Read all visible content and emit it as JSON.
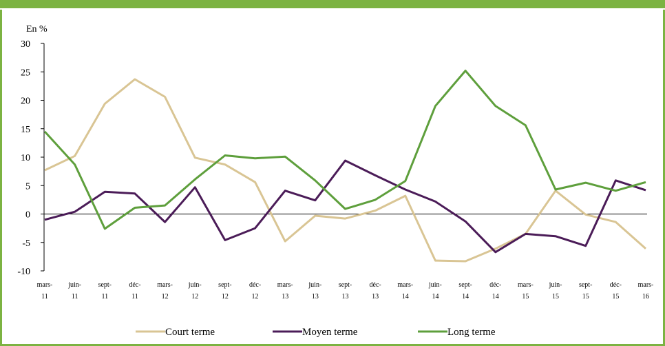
{
  "chart_data": {
    "type": "line",
    "ylabel": "En %",
    "ylim": [
      -10,
      30
    ],
    "yticks": [
      30,
      25,
      20,
      15,
      10,
      5,
      0,
      -5,
      -10
    ],
    "categories": [
      [
        "mars-",
        "11"
      ],
      [
        "juin-",
        "11"
      ],
      [
        "sept-",
        "11"
      ],
      [
        "déc-",
        "11"
      ],
      [
        "mars-",
        "12"
      ],
      [
        "juin-",
        "12"
      ],
      [
        "sept-",
        "12"
      ],
      [
        "déc-",
        "12"
      ],
      [
        "mars-",
        "13"
      ],
      [
        "juin-",
        "13"
      ],
      [
        "sept-",
        "13"
      ],
      [
        "déc-",
        "13"
      ],
      [
        "mars-",
        "14"
      ],
      [
        "juin-",
        "14"
      ],
      [
        "sept-",
        "14"
      ],
      [
        "déc-",
        "14"
      ],
      [
        "mars-",
        "15"
      ],
      [
        "juin-",
        "15"
      ],
      [
        "sept-",
        "15"
      ],
      [
        "déc-",
        "15"
      ],
      [
        "mars-",
        "16"
      ]
    ],
    "series": [
      {
        "name": "Court terme",
        "color": "#d9c594",
        "values": [
          7.7,
          10.2,
          19.4,
          23.7,
          20.6,
          9.9,
          8.7,
          5.6,
          -4.8,
          -0.3,
          -0.8,
          0.6,
          3.2,
          -8.2,
          -8.3,
          -6.1,
          -3.5,
          4.1,
          -0.1,
          -1.4,
          -6.1
        ]
      },
      {
        "name": "Moyen terme",
        "color": "#4b1c58",
        "values": [
          -1.0,
          0.4,
          3.9,
          3.6,
          -1.4,
          4.7,
          -4.6,
          -2.5,
          4.1,
          2.4,
          9.4,
          6.8,
          4.3,
          2.2,
          -1.3,
          -6.7,
          -3.5,
          -3.9,
          -5.6,
          5.9,
          4.2
        ]
      },
      {
        "name": "Long terme",
        "color": "#5e9f3c",
        "values": [
          14.5,
          8.7,
          -2.6,
          1.1,
          1.5,
          6.1,
          10.3,
          9.8,
          10.1,
          5.9,
          0.9,
          2.5,
          5.8,
          19.0,
          25.2,
          19.0,
          15.6,
          4.3,
          5.5,
          4.1,
          5.6
        ]
      }
    ],
    "legend_position": "bottom",
    "grid": false
  }
}
